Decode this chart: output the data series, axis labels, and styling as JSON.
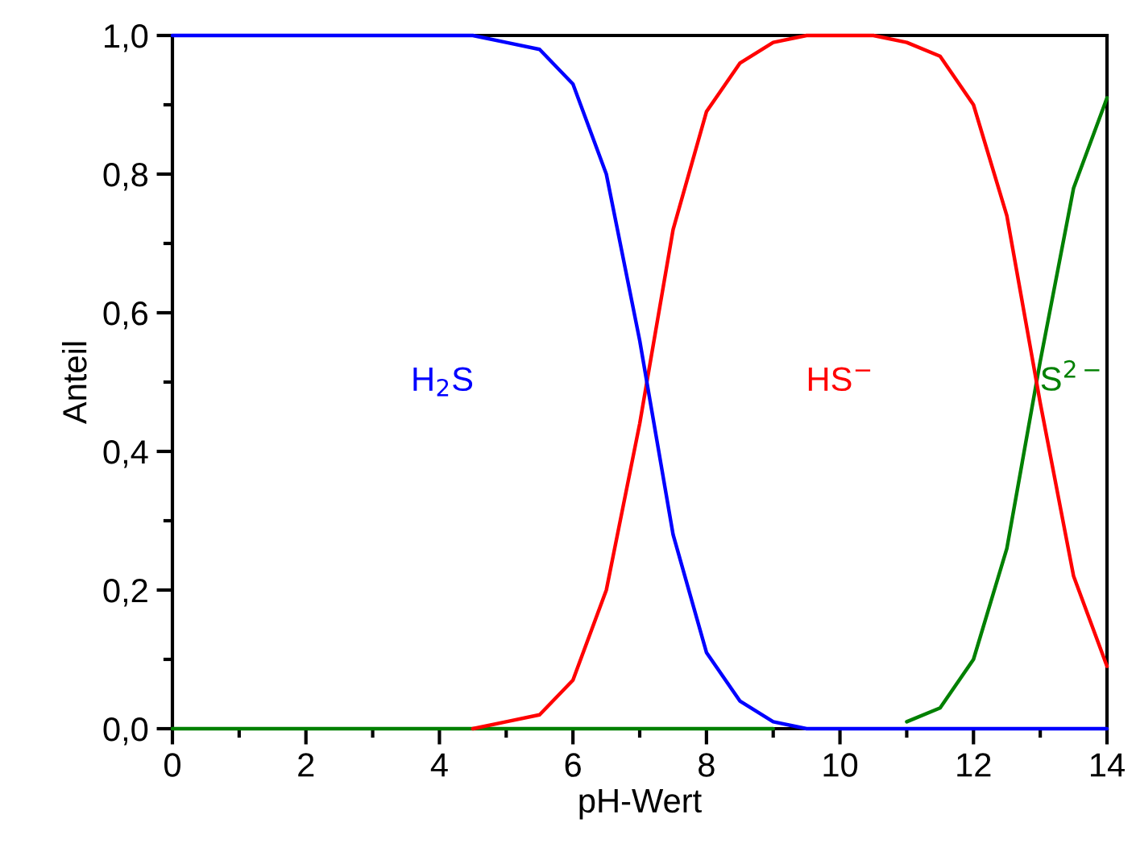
{
  "chart_data": {
    "type": "line",
    "xlabel": "pH-Wert",
    "ylabel": "Anteil",
    "x": [
      0,
      1,
      2,
      3,
      4,
      4.5,
      5,
      5.5,
      6,
      6.5,
      7,
      7.5,
      8,
      8.5,
      9,
      9.5,
      10,
      10.5,
      11,
      11.5,
      12,
      12.5,
      13,
      13.5,
      14
    ],
    "series": [
      {
        "name": "H$_{2}$S",
        "color": "#0000ff",
        "values": [
          1.0,
          1.0,
          1.0,
          1.0,
          1.0,
          1.0,
          0.99,
          0.98,
          0.93,
          0.8,
          0.56,
          0.28,
          0.11,
          0.04,
          0.01,
          0.0,
          0.0,
          0.0,
          0.0,
          0.0,
          0.0,
          0.0,
          0.0,
          0.0,
          0.0
        ]
      },
      {
        "name": "HS$^{−}$",
        "color": "#ff0000",
        "values": [
          null,
          null,
          null,
          null,
          null,
          0.0,
          0.01,
          0.02,
          0.07,
          0.2,
          0.44,
          0.72,
          0.89,
          0.96,
          0.99,
          1.0,
          1.0,
          1.0,
          0.99,
          0.97,
          0.9,
          0.74,
          0.47,
          0.22,
          0.09
        ]
      },
      {
        "name": "S$^{2−}$",
        "color": "#008000",
        "values": [
          0.0,
          0.0,
          0.0,
          0.0,
          0.0,
          0.0,
          0.0,
          0.0,
          0.0,
          0.0,
          0.0,
          0.0,
          0.0,
          0.0,
          0.0,
          null,
          null,
          null,
          0.01,
          0.03,
          0.1,
          0.26,
          0.53,
          0.78,
          0.91
        ]
      }
    ],
    "xlim": [
      0,
      14
    ],
    "ylim": [
      0,
      1
    ],
    "xticks": [
      0,
      {
        "value": 1,
        "label": null
      },
      2,
      {
        "value": 3,
        "label": null
      },
      4,
      {
        "value": 5,
        "label": null
      },
      6,
      {
        "value": 7,
        "label": null
      },
      8,
      {
        "value": 9,
        "label": null
      },
      10,
      {
        "value": 11,
        "label": null
      },
      12,
      {
        "value": 13,
        "label": null
      },
      14
    ],
    "yticks": [
      {
        "value": 0,
        "label": "0,0"
      },
      {
        "value": 0.1,
        "label": null
      },
      {
        "value": 0.2,
        "label": "0,2"
      },
      {
        "value": 0.3,
        "label": null
      },
      {
        "value": 0.4,
        "label": "0,4"
      },
      {
        "value": 0.5,
        "label": null
      },
      {
        "value": 0.6,
        "label": "0,6"
      },
      {
        "value": 0.7,
        "label": null
      },
      {
        "value": 0.8,
        "label": "0,8"
      },
      {
        "value": 0.9,
        "label": null
      },
      {
        "value": 1,
        "label": "1,0"
      }
    ],
    "grid": false,
    "legend": false,
    "marker": "none",
    "line_style": "solid"
  }
}
